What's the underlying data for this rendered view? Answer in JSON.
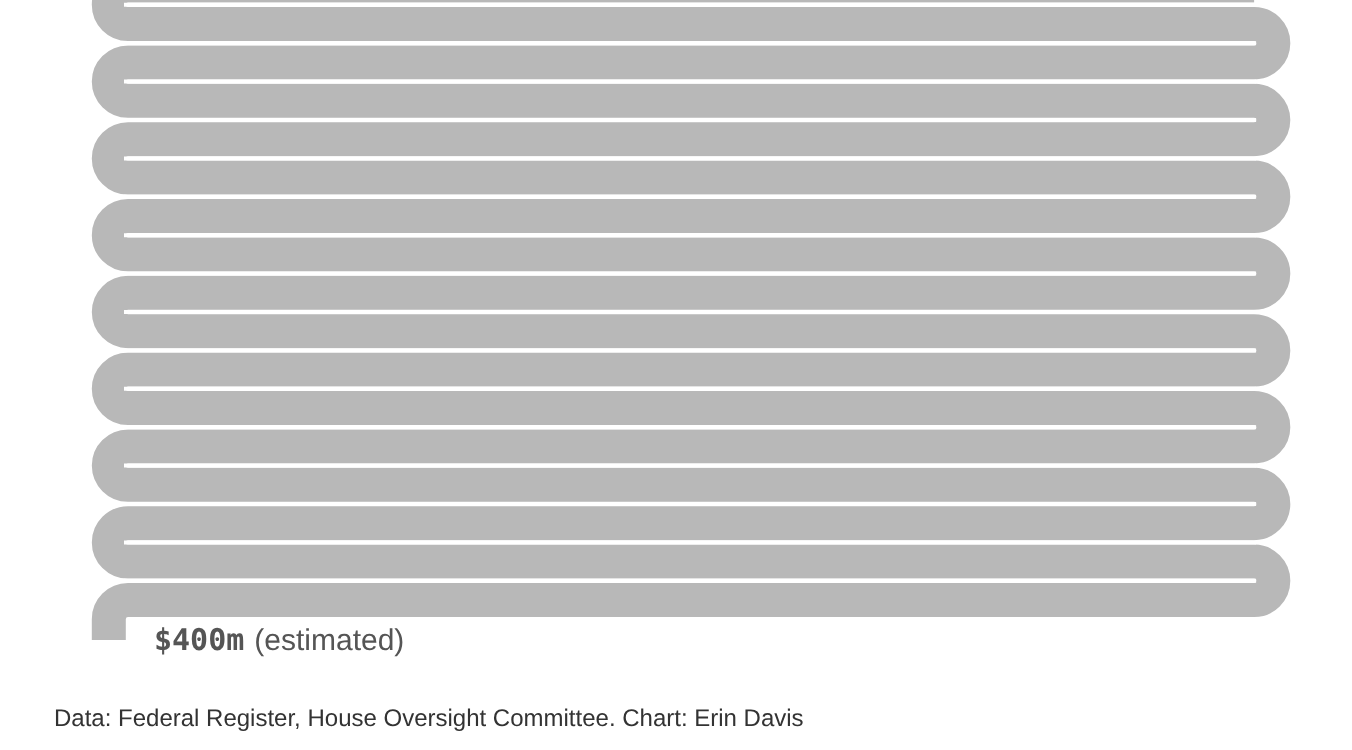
{
  "chart_data": {
    "type": "other",
    "values": [
      400
    ],
    "value_labels": [
      "$400m"
    ],
    "color": "#b8b8b8",
    "annotations": [
      "(estimated)",
      "Data: Federal Register, House Oversight Committee. Chart: Erin Davis"
    ]
  }
}
